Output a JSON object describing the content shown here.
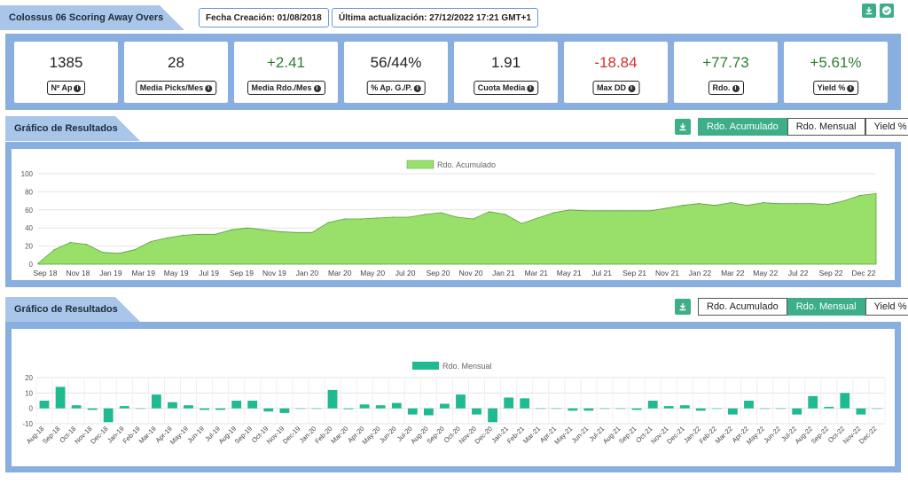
{
  "header": {
    "title": "Colossus 06 Scoring Away Overs",
    "fecha_creacion": "Fecha Creación: 01/08/2018",
    "ultima_actualizacion": "Última actualización: 27/12/2022 17:21 GMT+1"
  },
  "stats": [
    {
      "value": "1385",
      "label": "Nº Ap",
      "color": "#222222"
    },
    {
      "value": "28",
      "label": "Media Picks/Mes",
      "color": "#222222"
    },
    {
      "value": "+2.41",
      "label": "Media Rdo./Mes",
      "color": "#2e7d32"
    },
    {
      "value": "56/44%",
      "label": "% Ap. G./P.",
      "color": "#222222"
    },
    {
      "value": "1.91",
      "label": "Cuota Media",
      "color": "#222222"
    },
    {
      "value": "-18.84",
      "label": "Max DD",
      "color": "#d32f2f"
    },
    {
      "value": "+77.73",
      "label": "Rdo.",
      "color": "#2e7d32"
    },
    {
      "value": "+5.61%",
      "label": "Yield %",
      "color": "#2e7d32"
    }
  ],
  "section1": {
    "title": "Gráfico de Resultados",
    "tabs": [
      "Rdo. Acumulado",
      "Rdo. Mensual",
      "Yield %"
    ],
    "active_tab": 0
  },
  "section2": {
    "title": "Gráfico de Resultados",
    "tabs": [
      "Rdo. Acumulado",
      "Rdo. Mensual",
      "Yield %"
    ],
    "active_tab": 1
  },
  "colors": {
    "accent": "#3dae87",
    "panel": "#89afe0",
    "ribbon": "#a9c6ea",
    "area_fill": "#99e06b",
    "area_line": "#5a9e3a",
    "bar": "#1fba8f"
  },
  "chart_data": [
    {
      "type": "area",
      "legend": "Rdo. Acumulado",
      "ylim": [
        0,
        100
      ],
      "yticks": [
        0,
        20,
        40,
        60,
        80,
        100
      ],
      "xlabels": [
        "Sep 18",
        "Nov 18",
        "Jan 19",
        "Mar 19",
        "May 19",
        "Jul 19",
        "Sep 19",
        "Nov 19",
        "Jan 20",
        "Mar 20",
        "May 20",
        "Jul 20",
        "Sep 20",
        "Nov 20",
        "Jan 21",
        "Mar 21",
        "May 21",
        "Jul 21",
        "Sep 21",
        "Nov 21",
        "Jan 22",
        "Mar 22",
        "May 22",
        "Jul 22",
        "Sep 22",
        "Dec 22"
      ],
      "x": [
        "Aug 18",
        "Sep 18",
        "Oct 18",
        "Nov 18",
        "Dec 18",
        "Jan 19",
        "Feb 19",
        "Mar 19",
        "Apr 19",
        "May 19",
        "Jun 19",
        "Jul 19",
        "Aug 19",
        "Sep 19",
        "Oct 19",
        "Nov 19",
        "Dec 19",
        "Jan 20",
        "Feb 20",
        "Mar 20",
        "Apr 20",
        "May 20",
        "Jun 20",
        "Jul 20",
        "Aug 20",
        "Sep 20",
        "Oct 20",
        "Nov 20",
        "Dec 20",
        "Jan 21",
        "Feb 21",
        "Mar 21",
        "Apr 21",
        "May 21",
        "Jun 21",
        "Jul 21",
        "Aug 21",
        "Sep 21",
        "Oct 21",
        "Nov 21",
        "Dec 21",
        "Jan 22",
        "Feb 22",
        "Mar 22",
        "Apr 22",
        "May 22",
        "Jun 22",
        "Jul 22",
        "Aug 22",
        "Sep 22",
        "Oct 22",
        "Nov 22",
        "Dec 22"
      ],
      "values": [
        1,
        16,
        24,
        22,
        13,
        12,
        16,
        25,
        29,
        32,
        33,
        33,
        38,
        40,
        38,
        36,
        35,
        35,
        46,
        50,
        50,
        51,
        52,
        52,
        55,
        57,
        52,
        50,
        58,
        55,
        45,
        51,
        57,
        60,
        59,
        59,
        59,
        59,
        59,
        62,
        65,
        67,
        65,
        68,
        65,
        68,
        67,
        67,
        67,
        66,
        70,
        76,
        78
      ]
    },
    {
      "type": "bar",
      "legend": "Rdo. Mensual",
      "ylim": [
        -10,
        20
      ],
      "yticks": [
        -10,
        0,
        10,
        20
      ],
      "categories": [
        "Aug-18",
        "Sep-18",
        "Oct-18",
        "Nov-18",
        "Dec-18",
        "Jan-19",
        "Feb-19",
        "Mar-19",
        "Apr-19",
        "May-19",
        "Jun-19",
        "Jul-19",
        "Aug-19",
        "Sep-19",
        "Oct-19",
        "Nov-19",
        "Dec-19",
        "Jan-20",
        "Feb-20",
        "Mar-20",
        "Apr-20",
        "May-20",
        "Jun-20",
        "Jul-20",
        "Aug-20",
        "Sep-20",
        "Oct-20",
        "Nov-20",
        "Dec-20",
        "Jan-21",
        "Feb-21",
        "Mar-21",
        "Apr-21",
        "May-21",
        "Jun-21",
        "Jul-21",
        "Aug-21",
        "Sep-21",
        "Oct-21",
        "Nov-21",
        "Dec-21",
        "Jan-22",
        "Feb-22",
        "Mar-22",
        "Apr-22",
        "May-22",
        "Jun-22",
        "Jul-22",
        "Aug-22",
        "Sep-22",
        "Oct-22",
        "Nov-22",
        "Dec-22"
      ],
      "values": [
        5,
        14,
        2,
        -1,
        -9,
        1.5,
        0,
        9,
        4,
        2,
        -1,
        -1,
        5,
        5,
        -2,
        -3,
        0,
        0,
        12,
        -0.5,
        2.5,
        2,
        3.5,
        -4,
        -4.5,
        3,
        9,
        -4,
        -9,
        7,
        6.5,
        0,
        0,
        -1.5,
        -1.5,
        0,
        0,
        -1,
        5,
        1.5,
        2,
        -1.5,
        0,
        -4,
        5,
        0,
        0,
        -4,
        8,
        1,
        10,
        -4,
        0
      ]
    }
  ]
}
